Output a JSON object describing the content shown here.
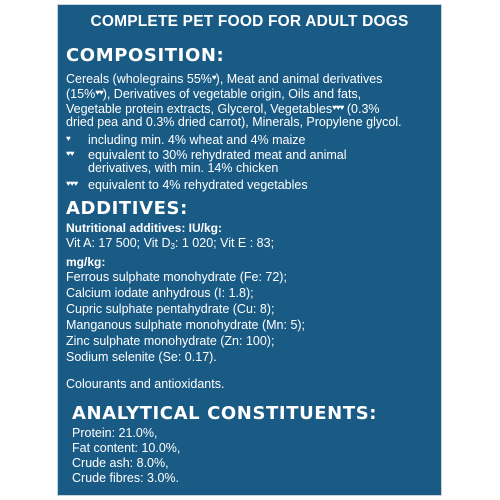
{
  "header": "COMPLETE PET FOOD FOR ADULT DOGS",
  "composition": {
    "heading": "COMPOSITION:",
    "line1": "Cereals (wholegrains 55%",
    "line1b": "), Meat and animal derivatives",
    "line2a": "(15%",
    "line2b": "), Derivatives of vegetable origin, Oils and fats,",
    "line3a": "Vegetable protein extracts, Glycerol, Vegetables",
    "line3b": " (0.3%",
    "line4": "dried pea and 0.3% dried carrot), Minerals, Propylene glycol.",
    "note1": "including min. 4% wheat and 4% maize",
    "note2a": "equivalent to 30% rehydrated meat and animal",
    "note2b": "derivatives, with min. 14% chicken",
    "note3": "equivalent to 4% rehydrated vegetables",
    "heart1": "♥",
    "heart2": "♥♥",
    "heart3": "♥♥♥"
  },
  "additives": {
    "heading": "ADDITIVES:",
    "nutritional_label": "Nutritional additives: IU/kg:",
    "vit_a": "Vit A: 17 500; Vit D",
    "vit_d_sub": "3",
    "vit_rest": ": 1 020; Vit E : 83;",
    "mgkg_label": "mg/kg:",
    "items": [
      "Ferrous sulphate monohydrate (Fe: 72);",
      "Calcium iodate anhydrous (I: 1.8);",
      "Cupric sulphate pentahydrate (Cu: 8);",
      "Manganous sulphate monohydrate (Mn: 5);",
      "Zinc sulphate monohydrate (Zn: 100);",
      "Sodium selenite (Se: 0.17)."
    ],
    "colourants": "Colourants and antioxidants."
  },
  "analytical": {
    "heading": "ANALYTICAL CONSTITUENTS:",
    "items": [
      "Protein: 21.0%,",
      "Fat content: 10.0%,",
      "Crude ash: 8.0%,",
      "Crude fibres: 3.0%."
    ]
  }
}
